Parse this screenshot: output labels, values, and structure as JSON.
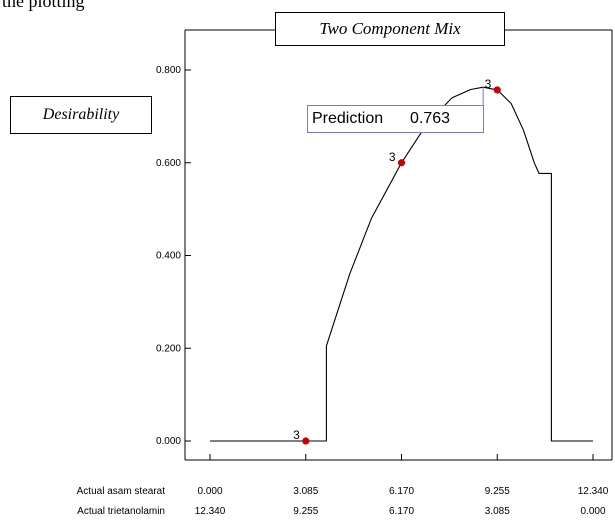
{
  "top_text": "the plotting",
  "chart_data": {
    "type": "line",
    "title": "Two Component Mix",
    "ylabel": "Desirability",
    "ylim": [
      0.0,
      0.8
    ],
    "y_ticks": [
      "0.000",
      "0.200",
      "0.400",
      "0.600",
      "0.800"
    ],
    "x_rows": [
      {
        "label": "Actual asam stearat",
        "ticks": [
          "0.000",
          "3.085",
          "6.170",
          "9.255",
          "12.340"
        ]
      },
      {
        "label": "Actual trietanolamin",
        "ticks": [
          "12.340",
          "9.255",
          "6.170",
          "3.085",
          "0.000"
        ]
      }
    ],
    "xlim": [
      0.0,
      12.34
    ],
    "series": [
      {
        "x": [
          0.0,
          3.0,
          3.75,
          3.75,
          4.5,
          5.2,
          6.17,
          7.0,
          7.8,
          8.4,
          8.8,
          9.255,
          9.7,
          10.1,
          10.45,
          10.6,
          11.0,
          11.0,
          12.34
        ],
        "values": [
          0.0,
          0.0,
          0.0,
          0.205,
          0.36,
          0.48,
          0.6,
          0.685,
          0.74,
          0.758,
          0.763,
          0.757,
          0.728,
          0.67,
          0.6,
          0.577,
          0.577,
          0.0,
          0.0
        ]
      }
    ],
    "points": [
      {
        "x": 3.085,
        "y": 0.0,
        "label": "3"
      },
      {
        "x": 6.17,
        "y": 0.6,
        "label": "3"
      },
      {
        "x": 9.255,
        "y": 0.757,
        "label": "3"
      }
    ],
    "prediction": {
      "label": "Prediction",
      "value": "0.763",
      "x": 8.8,
      "y": 0.763
    },
    "colors": {
      "line": "#000000",
      "point": "#cc0000",
      "box_border": "#7777dd"
    }
  }
}
